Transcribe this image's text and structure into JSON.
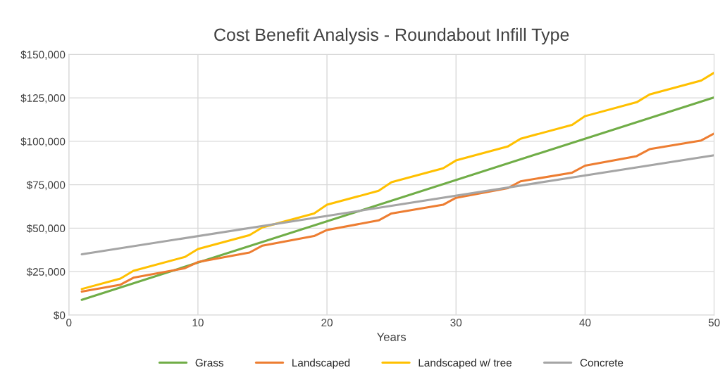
{
  "chart_data": {
    "type": "line",
    "title": "Cost Benefit Analysis - Roundabout Infill Type",
    "xlabel": "Years",
    "xlim": [
      0,
      50
    ],
    "xticks": [
      0,
      10,
      20,
      30,
      40,
      50
    ],
    "ylim": [
      0,
      150000
    ],
    "yticks": [
      {
        "value": 0,
        "label": "$0"
      },
      {
        "value": 25000,
        "label": "$25,000"
      },
      {
        "value": 50000,
        "label": "$50,000"
      },
      {
        "value": 75000,
        "label": "$75,000"
      },
      {
        "value": 100000,
        "label": "$100,000"
      },
      {
        "value": 125000,
        "label": "$125,000"
      },
      {
        "value": 150000,
        "label": "$150,000"
      }
    ],
    "grid": true,
    "legend": "bottom",
    "marker": "none",
    "line_style": "solid",
    "series": [
      {
        "name": "Grass",
        "color": "#70ad47",
        "x": [
          1,
          50
        ],
        "values": [
          8800,
          125300
        ]
      },
      {
        "name": "Landscaped",
        "color": "#ed7d31",
        "x": [
          1,
          4,
          5,
          9,
          10,
          14,
          15,
          19,
          20,
          24,
          25,
          29,
          30,
          34,
          35,
          39,
          40,
          44,
          45,
          49,
          50
        ],
        "values": [
          13500,
          17500,
          21500,
          27000,
          30500,
          36000,
          40000,
          45500,
          49000,
          54500,
          58500,
          63500,
          67500,
          73000,
          77000,
          82000,
          86000,
          91500,
          95500,
          100500,
          104500
        ]
      },
      {
        "name": "Landscaped w/ tree",
        "color": "#ffc000",
        "x": [
          1,
          4,
          5,
          9,
          10,
          14,
          15,
          19,
          20,
          24,
          25,
          29,
          30,
          34,
          35,
          39,
          40,
          44,
          45,
          49,
          50
        ],
        "values": [
          15000,
          21000,
          25500,
          33500,
          38000,
          46000,
          50500,
          58500,
          63500,
          71500,
          76500,
          84500,
          89000,
          97000,
          101500,
          109500,
          114500,
          122500,
          127000,
          135000,
          139500
        ]
      },
      {
        "name": "Concrete",
        "color": "#a5a5a5",
        "x": [
          1,
          50
        ],
        "values": [
          35000,
          92000
        ]
      }
    ]
  }
}
